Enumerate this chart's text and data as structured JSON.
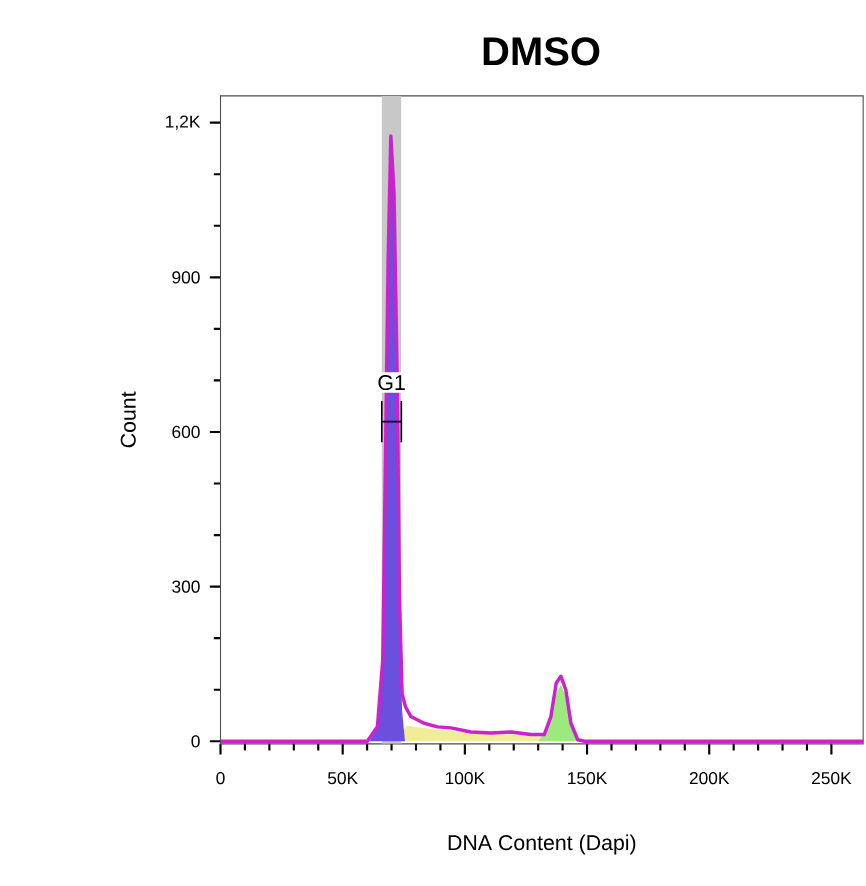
{
  "chart_data": {
    "type": "area",
    "title": "DMSO",
    "xlabel": "DNA Content (Dapi)",
    "ylabel": "Count",
    "xlim": [
      0,
      263000
    ],
    "ylim": [
      -5,
      1252
    ],
    "xticks": [
      0,
      {
        "value": 50000,
        "label": "50K"
      },
      {
        "value": 100000,
        "label": "100K"
      },
      {
        "value": 150000,
        "label": "150K"
      },
      {
        "value": 200000,
        "label": "200K"
      },
      {
        "value": 250000,
        "label": "250K"
      }
    ],
    "yticks": [
      0,
      300,
      600,
      900,
      {
        "value": 1200,
        "label": "1,2K"
      }
    ],
    "bands": [
      {
        "axis": "x",
        "from": 66000,
        "to": 74000,
        "label": "G1",
        "color": "#c8c8c8"
      }
    ],
    "series": [
      {
        "color": "#f0ec9a",
        "x": [
          72000,
          76000,
          90000,
          110000,
          130000,
          138000,
          142000
        ],
        "values": [
          0,
          30,
          22,
          15,
          12,
          null,
          0
        ]
      },
      {
        "color": "#9de87f",
        "x": [
          130000,
          134000,
          137000,
          139300,
          141500,
          144000,
          147000
        ],
        "values": [
          0,
          25,
          90,
          110,
          85,
          25,
          0
        ]
      },
      {
        "color": "#6a50dc",
        "x": [
          61000,
          64200,
          66400,
          67500,
          68600,
          69700,
          71000,
          72400,
          73200,
          74300,
          75500
        ],
        "values": [
          0,
          25,
          150,
          540,
          925,
          1160,
          1050,
          660,
          270,
          60,
          0
        ]
      },
      {
        "type": "line",
        "color": "#cc22cc",
        "x": [
          0,
          60100,
          64200,
          66400,
          67500,
          68600,
          69700,
          71000,
          72400,
          73200,
          74300,
          75700,
          77900,
          83300,
          88800,
          94300,
          102500,
          110700,
          118900,
          127000,
          132500,
          135200,
          137400,
          139300,
          141300,
          143400,
          146200,
          149000,
          263000
        ],
        "values": [
          0,
          0,
          28,
          158,
          546,
          935,
          1174,
          1064,
          676,
          287,
          93,
          67,
          48,
          35,
          28,
          26,
          18,
          16,
          18,
          13,
          13,
          48,
          113,
          126,
          100,
          35,
          3,
          0,
          0
        ]
      }
    ]
  }
}
